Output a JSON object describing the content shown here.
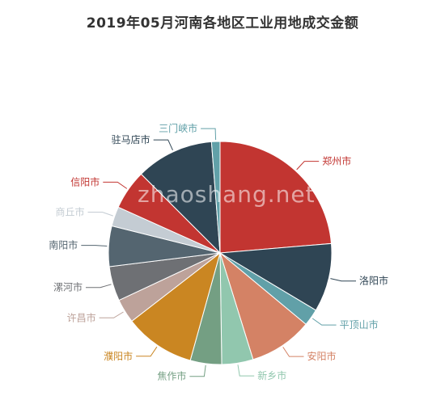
{
  "title": "2019年05月河南各地区工业用地成交金额",
  "watermark": "zhaoshang.net",
  "chart_data": {
    "type": "pie",
    "title": "2019年05月河南各地区工业用地成交金额",
    "slices": [
      {
        "label": "郑州市",
        "value": 25.0,
        "color": "#c23531"
      },
      {
        "label": "洛阳市",
        "value": 10.5,
        "color": "#2f4554"
      },
      {
        "label": "平顶山市",
        "value": 2.6,
        "color": "#61a0a8"
      },
      {
        "label": "安阳市",
        "value": 9.7,
        "color": "#d48265"
      },
      {
        "label": "新乡市",
        "value": 4.8,
        "color": "#91c7ae"
      },
      {
        "label": "焦作市",
        "value": 4.8,
        "color": "#749f83"
      },
      {
        "label": "濮阳市",
        "value": 10.8,
        "color": "#ca8622"
      },
      {
        "label": "许昌市",
        "value": 3.7,
        "color": "#bda29a"
      },
      {
        "label": "漯河市",
        "value": 5.3,
        "color": "#6e7074"
      },
      {
        "label": "南阳市",
        "value": 6.2,
        "color": "#546570"
      },
      {
        "label": "商丘市",
        "value": 3.0,
        "color": "#c4ccd3"
      },
      {
        "label": "信阳市",
        "value": 6.1,
        "color": "#c23531"
      },
      {
        "label": "驻马店市",
        "value": 11.9,
        "color": "#2f4554"
      },
      {
        "label": "三门峡市",
        "value": 1.3,
        "color": "#61a0a8"
      }
    ]
  }
}
